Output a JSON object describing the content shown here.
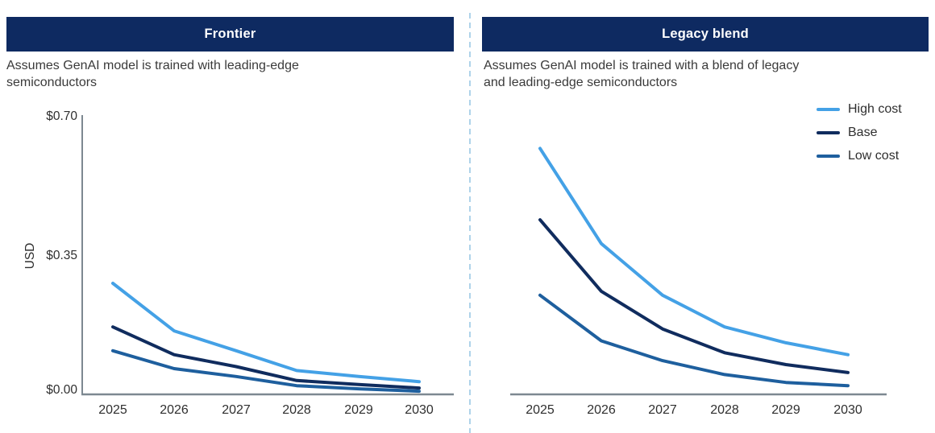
{
  "colors": {
    "header_bg": "#0e2a61",
    "header_text": "#ffffff",
    "axis": "#7d8891",
    "divider": "#aed3ea",
    "subtitle_text": "#3a3a3a",
    "tick_text": "#2f2f2f",
    "high_cost": "#44a1e6",
    "base": "#102c5e",
    "low_cost": "#1e5f9e"
  },
  "panels": [
    {
      "id": "frontier",
      "title": "Frontier",
      "subtitle": "Assumes GenAI model is trained with leading-edge\nsemiconductors"
    },
    {
      "id": "legacy-blend",
      "title": "Legacy blend",
      "subtitle": "Assumes GenAI model is trained with a blend of legacy\nand leading-edge semiconductors"
    }
  ],
  "legend": {
    "position": "top-right",
    "items": [
      {
        "label": "High cost",
        "color": "#44a1e6"
      },
      {
        "label": "Base",
        "color": "#102c5e"
      },
      {
        "label": "Low cost",
        "color": "#1e5f9e"
      }
    ]
  },
  "chart_data": [
    {
      "type": "line",
      "id": "frontier",
      "title": "Frontier",
      "subtitle": "Assumes GenAI model is trained with leading-edge semiconductors",
      "x": [
        "2025",
        "2026",
        "2027",
        "2028",
        "2029",
        "2030"
      ],
      "ylabel": "USD",
      "ylim": [
        0,
        0.7
      ],
      "yticks": [
        {
          "label": "$0.00",
          "value": 0
        },
        {
          "label": "$0.35",
          "value": 0.35
        },
        {
          "label": "$0.70",
          "value": 0.7
        }
      ],
      "grid": false,
      "legend_position": "none",
      "series": [
        {
          "name": "High cost",
          "color": "#44a1e6",
          "values": [
            0.28,
            0.16,
            0.11,
            0.06,
            0.045,
            0.032
          ]
        },
        {
          "name": "Base",
          "color": "#102c5e",
          "values": [
            0.17,
            0.1,
            0.07,
            0.035,
            0.025,
            0.016
          ]
        },
        {
          "name": "Low cost",
          "color": "#1e5f9e",
          "values": [
            0.11,
            0.065,
            0.045,
            0.022,
            0.014,
            0.008
          ]
        }
      ]
    },
    {
      "type": "line",
      "id": "legacy-blend",
      "title": "Legacy blend",
      "subtitle": "Assumes GenAI model is trained with a blend of legacy and leading-edge semiconductors",
      "x": [
        "2025",
        "2026",
        "2027",
        "2028",
        "2029",
        "2030"
      ],
      "ylabel": "",
      "ylim": [
        0,
        0.7
      ],
      "yticks": [],
      "grid": false,
      "legend_position": "top-right",
      "series": [
        {
          "name": "High cost",
          "color": "#44a1e6",
          "values": [
            0.62,
            0.38,
            0.25,
            0.17,
            0.13,
            0.1
          ]
        },
        {
          "name": "Base",
          "color": "#102c5e",
          "values": [
            0.44,
            0.26,
            0.165,
            0.105,
            0.075,
            0.055
          ]
        },
        {
          "name": "Low cost",
          "color": "#1e5f9e",
          "values": [
            0.25,
            0.135,
            0.085,
            0.05,
            0.03,
            0.022
          ]
        }
      ]
    }
  ]
}
